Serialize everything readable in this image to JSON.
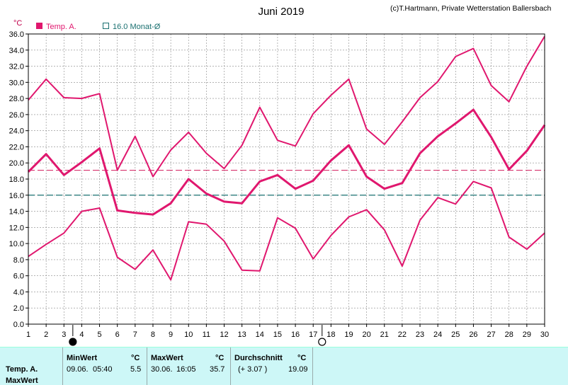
{
  "title": "Juni 2019",
  "credit": "(c)T.Hartmann, Private Wetterstation Ballersbach",
  "unit": "°C",
  "legend": [
    {
      "label": "Temp. A.",
      "color": "#e0176e",
      "marker": "filled-square"
    },
    {
      "label": "16.0 Monat-Ø",
      "color": "#1a7070",
      "marker": "hollow-square"
    }
  ],
  "colors": {
    "series": "#e0176e",
    "avg_line": "#d6336e",
    "month_avg_line": "#1a7070",
    "grid": "#888888",
    "panel": "#cdf7f7"
  },
  "chart_data": {
    "type": "line",
    "title": "Juni 2019",
    "ylabel": "°C",
    "xlim": [
      1,
      30
    ],
    "ylim": [
      0,
      36
    ],
    "y_ticks": [
      "0.0",
      "2.0",
      "4.0",
      "6.0",
      "8.0",
      "10.0",
      "12.0",
      "14.0",
      "16.0",
      "18.0",
      "20.0",
      "22.0",
      "24.0",
      "26.0",
      "28.0",
      "30.0",
      "32.0",
      "34.0",
      "36.0"
    ],
    "x_ticks": [
      "1",
      "2",
      "3",
      "4",
      "5",
      "6",
      "7",
      "8",
      "9",
      "10",
      "11",
      "12",
      "13",
      "14",
      "15",
      "16",
      "17",
      "18",
      "19",
      "20",
      "21",
      "22",
      "23",
      "24",
      "25",
      "26",
      "27",
      "28",
      "29",
      "30"
    ],
    "grid": true,
    "x": [
      1,
      2,
      3,
      4,
      5,
      6,
      7,
      8,
      9,
      10,
      11,
      12,
      13,
      14,
      15,
      16,
      17,
      18,
      19,
      20,
      21,
      22,
      23,
      24,
      25,
      26,
      27,
      28,
      29,
      30
    ],
    "series": [
      {
        "name": "Temp. A.",
        "role": "max",
        "values": [
          27.8,
          30.4,
          28.1,
          28.0,
          28.6,
          19.1,
          23.3,
          18.3,
          21.6,
          23.8,
          21.2,
          19.3,
          22.2,
          26.9,
          22.8,
          22.1,
          26.1,
          28.4,
          30.4,
          24.2,
          22.3,
          25.1,
          28.1,
          30.1,
          33.2,
          34.2,
          29.6,
          27.6,
          32.0,
          35.7
        ]
      },
      {
        "name": "Temp. A.",
        "role": "mean",
        "values": [
          18.9,
          21.1,
          18.5,
          20.1,
          21.8,
          14.1,
          13.8,
          13.6,
          15.0,
          18.0,
          16.2,
          15.2,
          15.0,
          17.7,
          18.5,
          16.8,
          17.8,
          20.3,
          22.2,
          18.3,
          16.8,
          17.5,
          21.2,
          23.3,
          24.9,
          26.6,
          23.2,
          19.2,
          21.5,
          24.7
        ]
      },
      {
        "name": "Temp. A.",
        "role": "min",
        "values": [
          8.4,
          9.9,
          11.3,
          14.0,
          14.4,
          8.3,
          6.8,
          9.2,
          5.5,
          12.7,
          12.4,
          10.3,
          6.7,
          6.6,
          13.2,
          11.9,
          8.1,
          11.0,
          13.3,
          14.2,
          11.7,
          7.2,
          12.9,
          15.7,
          14.9,
          17.7,
          16.9,
          10.8,
          9.3,
          11.3
        ]
      }
    ],
    "reference_lines": [
      {
        "value": 19.09,
        "color": "#d6336e",
        "style": "dashed"
      },
      {
        "value": 16.0,
        "label": "16.0 Monat-Ø",
        "color": "#1a7070",
        "style": "dashed"
      }
    ],
    "moon_phases": [
      {
        "day": 3.5,
        "phase": "new-moon"
      },
      {
        "day": 17.5,
        "phase": "full-moon"
      }
    ]
  },
  "stats": {
    "row_label_1": "Temp. A.",
    "row_label_2": "MaxWert",
    "min_header": "MinWert",
    "min_unit": "°C",
    "min_date": "09.06.",
    "min_time": "05:40",
    "min_value": "5.5",
    "max_header": "MaxWert",
    "max_unit": "°C",
    "max_date": "30.06.",
    "max_time": "16:05",
    "max_value": "35.7",
    "avg_header": "Durchschnitt",
    "avg_unit": "°C",
    "avg_diff": "(+ 3.07 )",
    "avg_value": "19.09"
  }
}
